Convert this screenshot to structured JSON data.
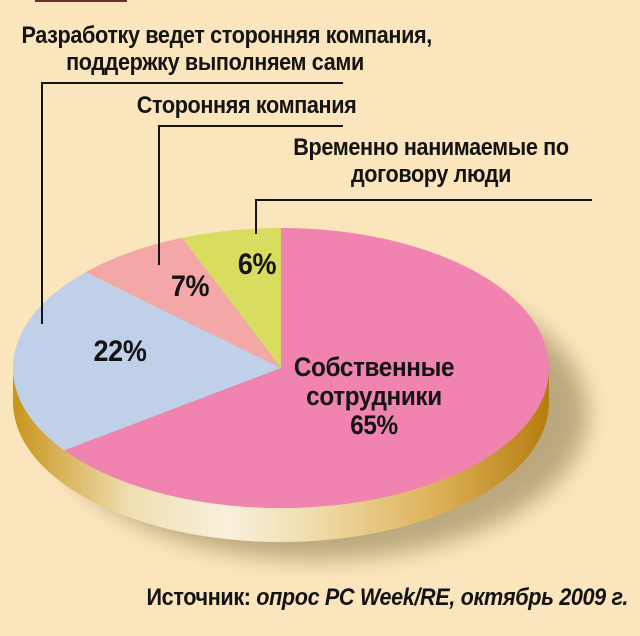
{
  "background_color": "#FBE5BD",
  "chart_data": {
    "type": "pie",
    "style": "3d-ellipse",
    "legend_position": "callout-labels",
    "slices": [
      {
        "label": "Собственные сотрудники",
        "value": 65,
        "pct_label": "65%",
        "color": "#F083AF"
      },
      {
        "label": "Разработку ведет сторонняя компания, поддержку выполняем сами",
        "value": 22,
        "pct_label": "22%",
        "color": "#C0D0E8"
      },
      {
        "label": "Сторонняя компания",
        "value": 7,
        "pct_label": "7%",
        "color": "#F3A7A7"
      },
      {
        "label": "Временно нанимаемые по договору люди",
        "value": 6,
        "pct_label": "6%",
        "color": "#D8DD60"
      }
    ],
    "source": "Источник: опрос PC Week/RE, октябрь 2009 г.",
    "line_color": "#141414",
    "rim_colors": [
      "#C8941C",
      "#F8F0DC",
      "#B67D0E"
    ],
    "shadow_color": "#8A784E"
  },
  "callouts": {
    "c22": {
      "line1": "Разработку ведет сторонняя компания,",
      "line2": "поддержку выполняем сами"
    },
    "c7": {
      "line1": "Сторонняя компания"
    },
    "c6": {
      "line1": "Временно нанимаемые по",
      "line2": "договору люди"
    }
  },
  "main_slice": {
    "line1": "Собственные",
    "line2": "сотрудники",
    "pct": "65%"
  },
  "pct_labels": {
    "p22": "22%",
    "p7": "7%",
    "p6": "6%"
  },
  "source": {
    "prefix": "Источник:",
    "text": " опрос PC Week/RE, октябрь 2009 г."
  }
}
